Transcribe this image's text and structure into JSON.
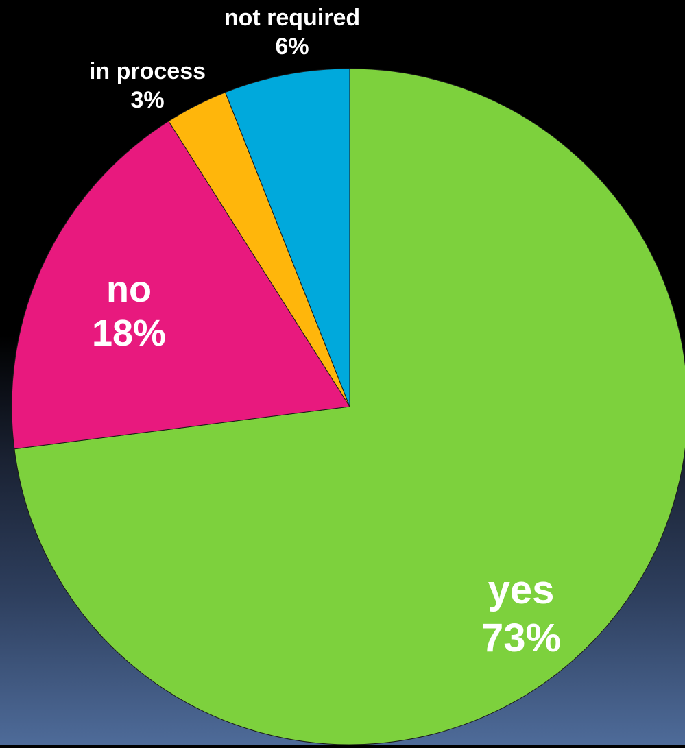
{
  "chart_data": {
    "type": "pie",
    "title": "",
    "start_angle_deg": 0,
    "direction": "clockwise",
    "slices": [
      {
        "label": "yes",
        "value": 73,
        "value_text": "73%",
        "color": "#7dd13d",
        "label_color": "#ffffff"
      },
      {
        "label": "no",
        "value": 18,
        "value_text": "18%",
        "color": "#e8197e",
        "label_color": "#ffffff"
      },
      {
        "label": "in process",
        "value": 3,
        "value_text": "3%",
        "color": "#ffb60b",
        "label_color": "#ffffff"
      },
      {
        "label": "not required",
        "value": 6,
        "value_text": "6%",
        "color": "#00a9dc",
        "label_color": "#ffffff"
      }
    ]
  }
}
